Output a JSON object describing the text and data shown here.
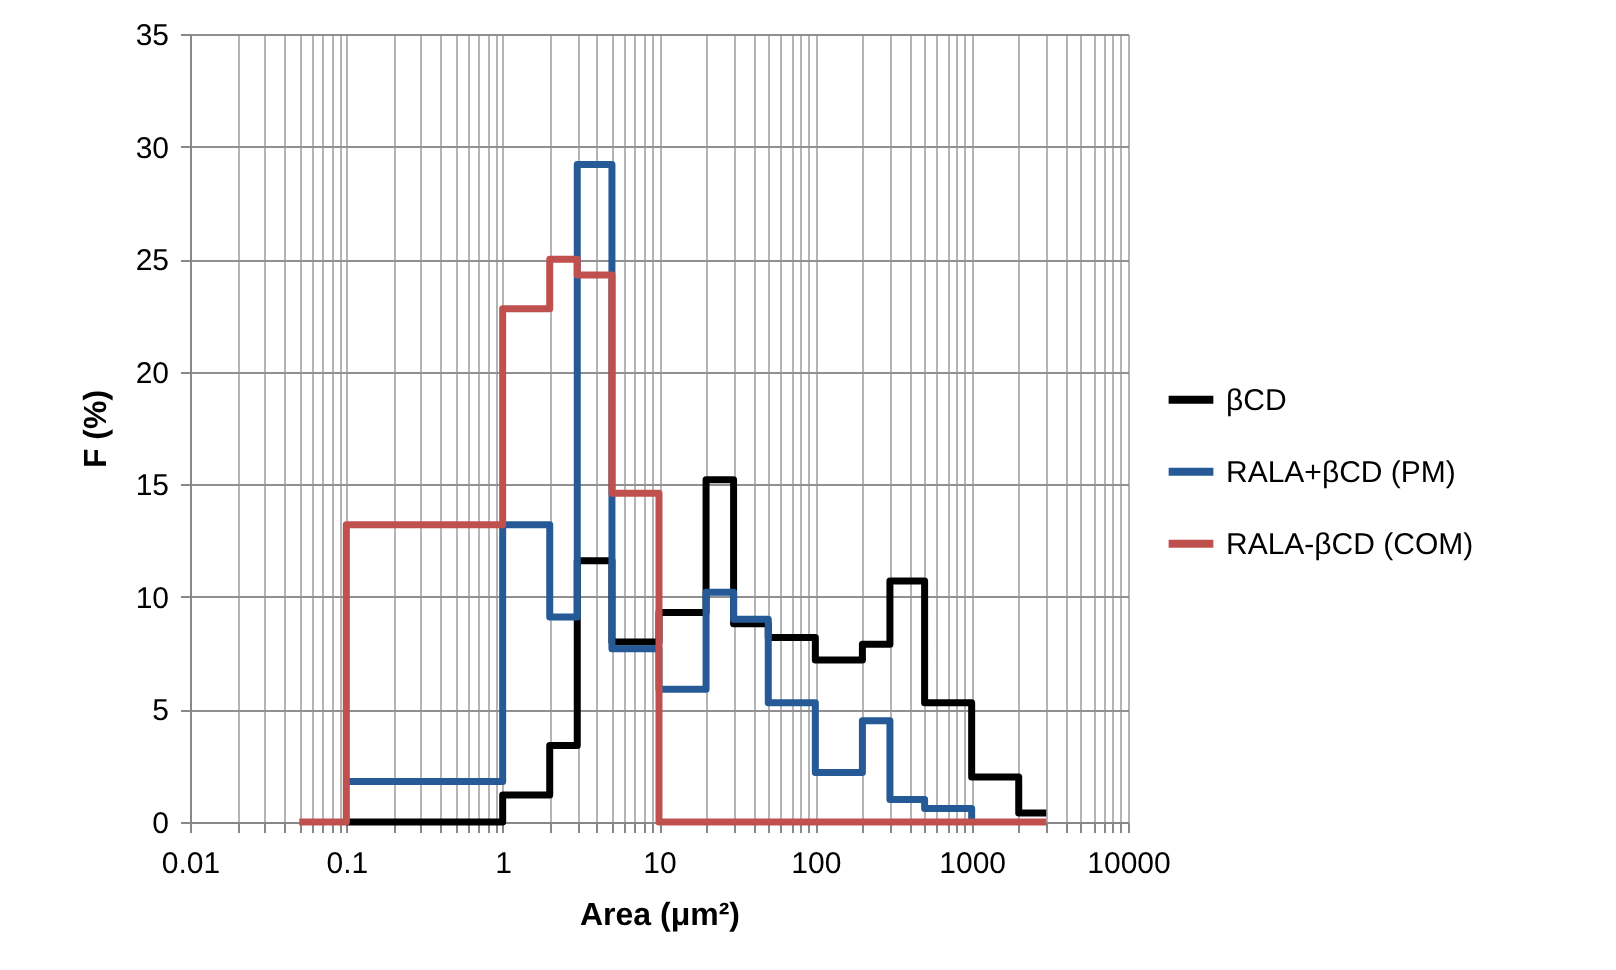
{
  "chart_data": {
    "type": "step",
    "xlabel": "Area (μm²)",
    "ylabel": "F (%)",
    "log": "x",
    "grid": true,
    "legend": "right",
    "marker": "none",
    "line_style": "solid",
    "xlim": [
      0.01,
      10000
    ],
    "ylim": [
      0,
      35
    ],
    "yticks": [
      0,
      5,
      10,
      15,
      20,
      25,
      30,
      35
    ],
    "xticks": [
      0.01,
      {
        "value": 0.02,
        "label": null
      },
      {
        "value": 0.03,
        "label": null
      },
      {
        "value": 0.04,
        "label": null
      },
      {
        "value": 0.05,
        "label": null
      },
      {
        "value": 0.06,
        "label": null
      },
      {
        "value": 0.07,
        "label": null
      },
      {
        "value": 0.08,
        "label": null
      },
      {
        "value": 0.09,
        "label": null
      },
      0.1,
      {
        "value": 0.2,
        "label": null
      },
      {
        "value": 0.3,
        "label": null
      },
      {
        "value": 0.4,
        "label": null
      },
      {
        "value": 0.5,
        "label": null
      },
      {
        "value": 0.6,
        "label": null
      },
      {
        "value": 0.7,
        "label": null
      },
      {
        "value": 0.8,
        "label": null
      },
      {
        "value": 0.9,
        "label": null
      },
      1,
      {
        "value": 2,
        "label": null
      },
      {
        "value": 3,
        "label": null
      },
      {
        "value": 4,
        "label": null
      },
      {
        "value": 5,
        "label": null
      },
      {
        "value": 6,
        "label": null
      },
      {
        "value": 7,
        "label": null
      },
      {
        "value": 8,
        "label": null
      },
      {
        "value": 9,
        "label": null
      },
      10,
      {
        "value": 20,
        "label": null
      },
      {
        "value": 30,
        "label": null
      },
      {
        "value": 40,
        "label": null
      },
      {
        "value": 50,
        "label": null
      },
      {
        "value": 60,
        "label": null
      },
      {
        "value": 70,
        "label": null
      },
      {
        "value": 80,
        "label": null
      },
      {
        "value": 90,
        "label": null
      },
      100,
      {
        "value": 200,
        "label": null
      },
      {
        "value": 300,
        "label": null
      },
      {
        "value": 400,
        "label": null
      },
      {
        "value": 500,
        "label": null
      },
      {
        "value": 600,
        "label": null
      },
      {
        "value": 700,
        "label": null
      },
      {
        "value": 800,
        "label": null
      },
      {
        "value": 900,
        "label": null
      },
      1000,
      {
        "value": 2000,
        "label": null
      },
      {
        "value": 3000,
        "label": null
      },
      {
        "value": 4000,
        "label": null
      },
      {
        "value": 5000,
        "label": null
      },
      {
        "value": 6000,
        "label": null
      },
      {
        "value": 7000,
        "label": null
      },
      {
        "value": 8000,
        "label": null
      },
      {
        "value": 9000,
        "label": null
      },
      10000
    ],
    "series": [
      {
        "name": "βCD",
        "color": "#000000",
        "x": [
          0.1,
          1,
          2,
          3,
          5,
          10,
          20,
          30,
          50,
          100,
          200,
          300,
          500,
          1000,
          2000,
          3000
        ],
        "values": [
          0,
          1.2,
          3.4,
          11.6,
          8,
          9.3,
          15.2,
          8.8,
          8.2,
          7.2,
          7.9,
          10.7,
          5.3,
          2,
          0.4,
          0.4
        ]
      },
      {
        "name": "RALA+βCD (PM)",
        "color": "#255a96",
        "x": [
          0.1,
          1,
          2,
          3,
          5,
          10,
          20,
          30,
          50,
          100,
          200,
          300,
          500,
          1000
        ],
        "values": [
          1.8,
          13.2,
          9.1,
          29.2,
          7.7,
          5.9,
          10.2,
          9,
          5.3,
          2.2,
          4.5,
          1,
          0.6,
          0
        ]
      },
      {
        "name": "RALA-βCD (COM)",
        "color": "#c0504d",
        "x": [
          0.05,
          0.1,
          1,
          2,
          3,
          5,
          10,
          3000
        ],
        "values": [
          0,
          13.2,
          22.8,
          25,
          24.3,
          14.6,
          0,
          0
        ]
      }
    ]
  }
}
